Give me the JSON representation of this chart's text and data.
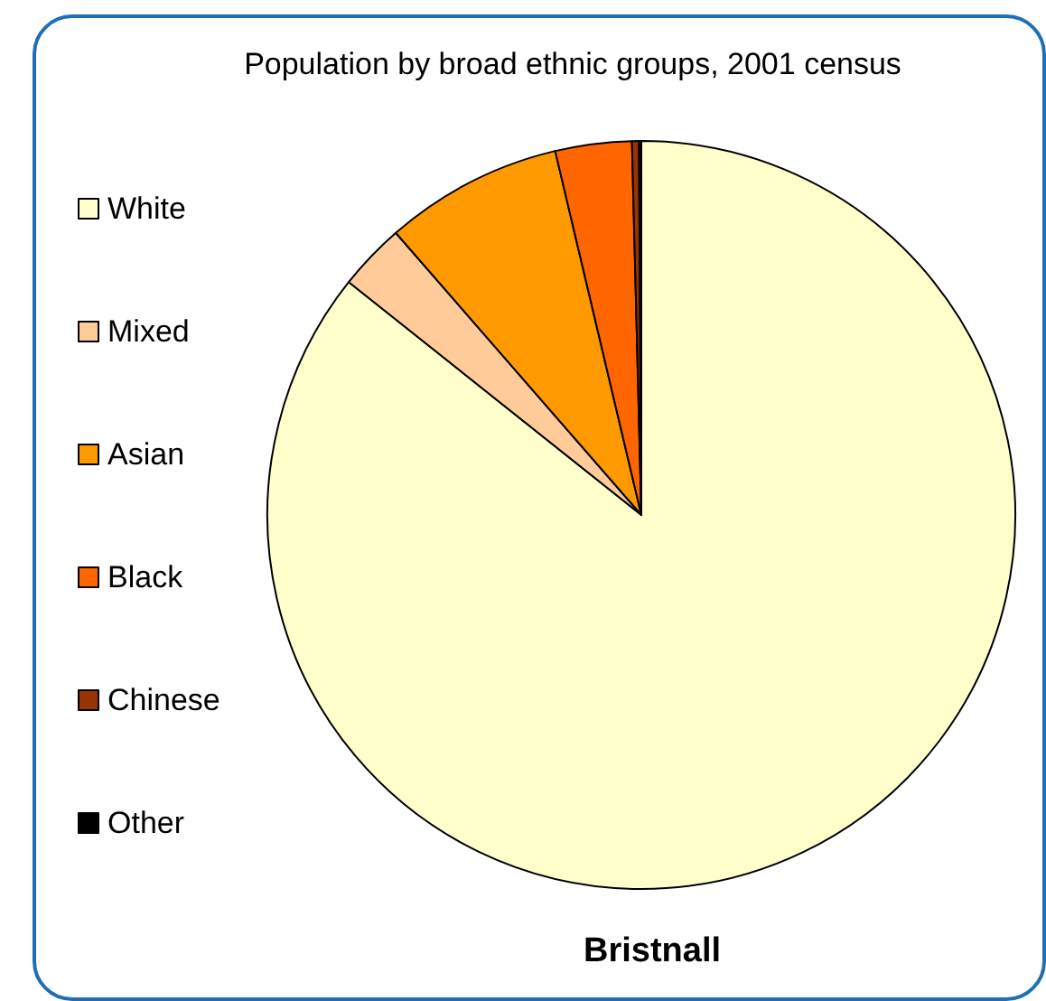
{
  "chart_data": {
    "type": "pie",
    "title": "Population by broad ethnic groups, 2001 census",
    "subtitle": "Bristnall",
    "categories": [
      "White",
      "Mixed",
      "Asian",
      "Black",
      "Chinese",
      "Other"
    ],
    "values": [
      85.7,
      2.9,
      7.7,
      3.3,
      0.3,
      0.1
    ],
    "colors": [
      "#ffffcc",
      "#ffcc99",
      "#ff9900",
      "#ff6600",
      "#993300",
      "#000000"
    ],
    "legend": "left"
  }
}
